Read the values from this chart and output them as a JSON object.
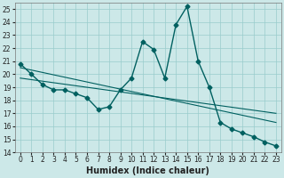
{
  "title": "",
  "xlabel": "Humidex (Indice chaleur)",
  "x": [
    0,
    1,
    2,
    3,
    4,
    5,
    6,
    7,
    8,
    9,
    10,
    11,
    12,
    13,
    14,
    15,
    16,
    17,
    18,
    19,
    20,
    21,
    22,
    23
  ],
  "line_main": [
    20.8,
    20.0,
    19.2,
    18.8,
    18.8,
    18.5,
    18.2,
    17.3,
    17.5,
    18.8,
    19.7,
    22.5,
    21.9,
    19.7,
    23.8,
    25.2,
    21.0,
    19.0,
    16.3,
    15.8,
    15.5,
    15.2,
    14.8,
    14.5
  ],
  "trend1_x": [
    0,
    23
  ],
  "trend1_y": [
    20.5,
    16.3
  ],
  "trend2_x": [
    0,
    23
  ],
  "trend2_y": [
    19.7,
    17.0
  ],
  "bg_color": "#cce8e8",
  "grid_color": "#99cccc",
  "line_color": "#006060",
  "ylim": [
    14,
    25.5
  ],
  "ytick_min": 14,
  "ytick_max": 25,
  "xlim_min": -0.5,
  "xlim_max": 23.5,
  "xticks": [
    0,
    1,
    2,
    3,
    4,
    5,
    6,
    7,
    8,
    9,
    10,
    11,
    12,
    13,
    14,
    15,
    16,
    17,
    18,
    19,
    20,
    21,
    22,
    23
  ],
  "yticks": [
    14,
    15,
    16,
    17,
    18,
    19,
    20,
    21,
    22,
    23,
    24,
    25
  ],
  "marker": "D",
  "marker_size": 2.5,
  "line_width": 1.0,
  "xlabel_fontsize": 7,
  "tick_fontsize": 5.5
}
